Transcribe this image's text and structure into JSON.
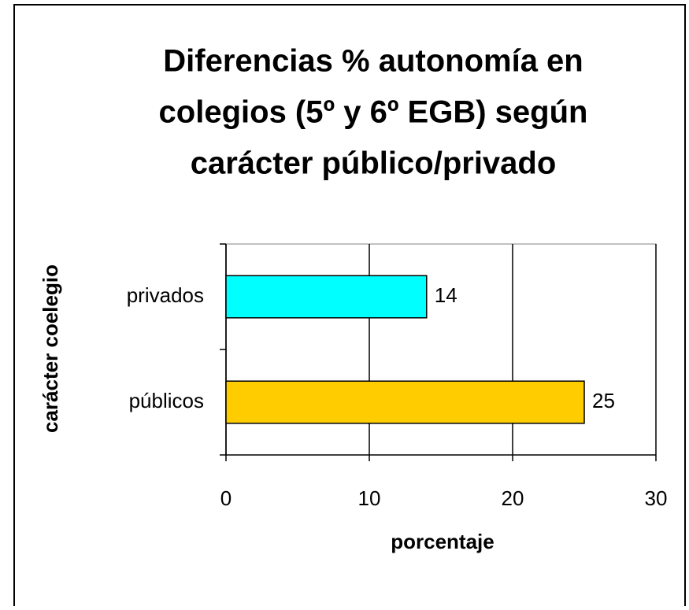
{
  "chart_data": {
    "type": "bar",
    "orientation": "horizontal",
    "title": [
      "Diferencias % autonomía en",
      "colegios  (5º y 6º EGB) según",
      "carácter público/privado"
    ],
    "x_label": "porcentaje",
    "y_label": "carácter coelegio",
    "categories": [
      "privados",
      "públicos"
    ],
    "values": [
      14,
      25
    ],
    "colors": [
      "#00ffff",
      "#ffcc00"
    ],
    "xlim": [
      0,
      30
    ],
    "xticks": [
      0,
      10,
      20,
      30
    ],
    "grid": true
  }
}
